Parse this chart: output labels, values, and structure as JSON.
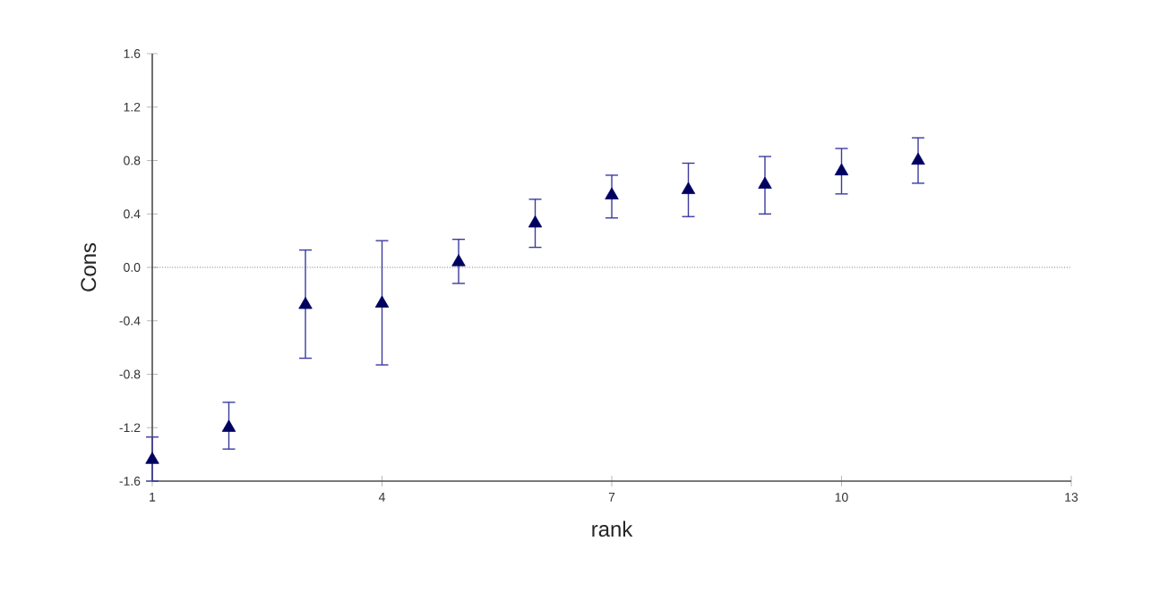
{
  "chart_data": {
    "type": "scatter",
    "xlabel": "rank",
    "ylabel": "Cons",
    "x": [
      1,
      2,
      3,
      4,
      5,
      6,
      7,
      8,
      9,
      10,
      11
    ],
    "values": [
      -1.44,
      -1.2,
      -0.28,
      -0.27,
      0.04,
      0.33,
      0.54,
      0.58,
      0.62,
      0.72,
      0.8
    ],
    "errors": [
      [
        -1.6,
        -1.27
      ],
      [
        -1.36,
        -1.01
      ],
      [
        -0.68,
        0.13
      ],
      [
        -0.73,
        0.2
      ],
      [
        -0.12,
        0.21
      ],
      [
        0.15,
        0.51
      ],
      [
        0.37,
        0.69
      ],
      [
        0.38,
        0.78
      ],
      [
        0.4,
        0.83
      ],
      [
        0.55,
        0.89
      ],
      [
        0.63,
        0.97
      ]
    ],
    "color": "#000060",
    "marker": "triangle",
    "xlim": [
      1,
      13
    ],
    "xticks": [
      1,
      4,
      7,
      10,
      13
    ],
    "ylim": [
      -1.6,
      1.6
    ],
    "yticks": [
      {
        "value": -1.6,
        "label": "-1.6"
      },
      {
        "value": -1.2,
        "label": "-1.2"
      },
      {
        "value": -0.8,
        "label": "-0.8"
      },
      {
        "value": -0.4,
        "label": "-0.4"
      },
      {
        "value": 0,
        "label": "0.0"
      },
      {
        "value": 0.4,
        "label": "0.4"
      },
      {
        "value": 0.8,
        "label": "0.8"
      },
      {
        "value": 1.2,
        "label": "1.2"
      },
      {
        "value": 1.6,
        "label": "1.6"
      }
    ],
    "ref_lines": [
      {
        "axis": "y",
        "value": 0,
        "line_style": "dotted",
        "color": "#303030"
      }
    ],
    "grid": false
  }
}
